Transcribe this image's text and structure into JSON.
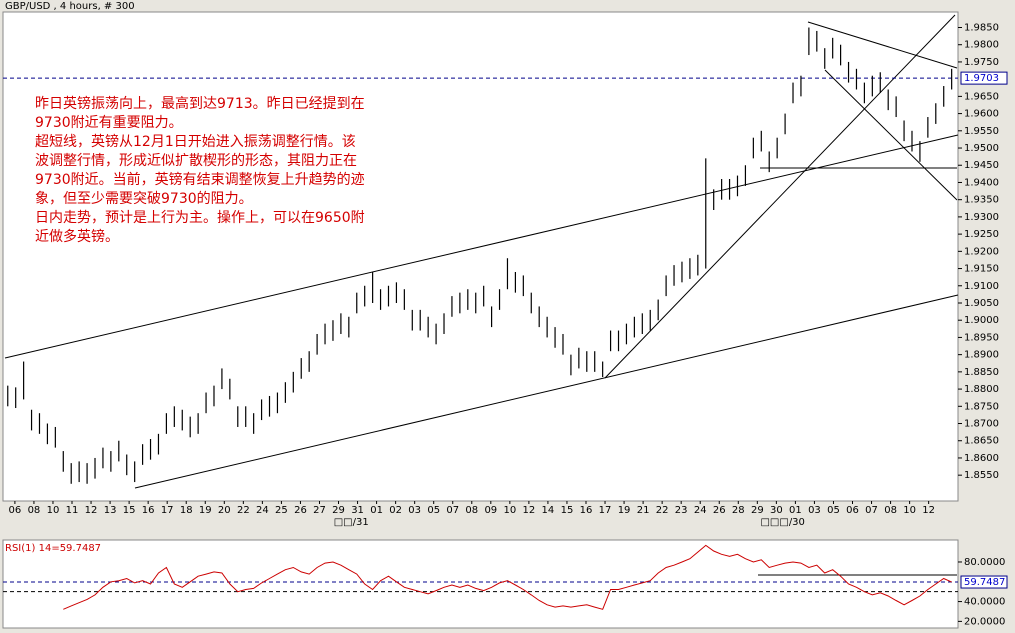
{
  "chart_data": [
    {
      "type": "range-bar",
      "title": "GBP/USD , 4 hours, # 300",
      "color": "#000000",
      "ylim": [
        1.8475,
        1.9895
      ],
      "xlim": [
        -0.6,
        119.8
      ],
      "yticks": [
        {
          "value": 1.855,
          "label": "1.8550"
        },
        {
          "value": 1.86,
          "label": "1.8600"
        },
        {
          "value": 1.865,
          "label": "1.8650"
        },
        {
          "value": 1.87,
          "label": "1.8700"
        },
        {
          "value": 1.875,
          "label": "1.8750"
        },
        {
          "value": 1.88,
          "label": "1.8800"
        },
        {
          "value": 1.885,
          "label": "1.8850"
        },
        {
          "value": 1.89,
          "label": "1.8900"
        },
        {
          "value": 1.895,
          "label": "1.8950"
        },
        {
          "value": 1.9,
          "label": "1.9000"
        },
        {
          "value": 1.905,
          "label": "1.9050"
        },
        {
          "value": 1.91,
          "label": "1.9100"
        },
        {
          "value": 1.915,
          "label": "1.9150"
        },
        {
          "value": 1.92,
          "label": "1.9200"
        },
        {
          "value": 1.925,
          "label": "1.9250"
        },
        {
          "value": 1.93,
          "label": "1.9300"
        },
        {
          "value": 1.935,
          "label": "1.9350"
        },
        {
          "value": 1.94,
          "label": "1.9400"
        },
        {
          "value": 1.945,
          "label": "1.9450"
        },
        {
          "value": 1.95,
          "label": "1.9500"
        },
        {
          "value": 1.955,
          "label": "1.9550"
        },
        {
          "value": 1.96,
          "label": "1.9600"
        },
        {
          "value": 1.965,
          "label": "1.9650"
        },
        {
          "value": 1.975,
          "label": "1.9750"
        },
        {
          "value": 1.98,
          "label": "1.9800"
        },
        {
          "value": 1.985,
          "label": "1.9850"
        }
      ],
      "xticks": [
        {
          "value": 0.9,
          "label": "06"
        },
        {
          "value": 3.3,
          "label": "08"
        },
        {
          "value": 5.7,
          "label": "10"
        },
        {
          "value": 8.1,
          "label": "11"
        },
        {
          "value": 10.5,
          "label": "12"
        },
        {
          "value": 12.9,
          "label": "13"
        },
        {
          "value": 15.3,
          "label": "15"
        },
        {
          "value": 17.7,
          "label": "16"
        },
        {
          "value": 20.1,
          "label": "17"
        },
        {
          "value": 22.5,
          "label": "18"
        },
        {
          "value": 24.9,
          "label": "19"
        },
        {
          "value": 27.3,
          "label": "20"
        },
        {
          "value": 29.7,
          "label": "22"
        },
        {
          "value": 32.1,
          "label": "24"
        },
        {
          "value": 34.5,
          "label": "25"
        },
        {
          "value": 36.9,
          "label": "26"
        },
        {
          "value": 39.3,
          "label": "27"
        },
        {
          "value": 41.7,
          "label": "29"
        },
        {
          "value": 44.1,
          "label": "31"
        },
        {
          "value": 46.5,
          "label": "01"
        },
        {
          "value": 48.9,
          "label": "02"
        },
        {
          "value": 51.3,
          "label": "03"
        },
        {
          "value": 53.7,
          "label": "05"
        },
        {
          "value": 56.1,
          "label": "07"
        },
        {
          "value": 58.5,
          "label": "08"
        },
        {
          "value": 60.9,
          "label": "09"
        },
        {
          "value": 63.3,
          "label": "10"
        },
        {
          "value": 65.7,
          "label": "12"
        },
        {
          "value": 68.1,
          "label": "14"
        },
        {
          "value": 70.5,
          "label": "15"
        },
        {
          "value": 72.9,
          "label": "16"
        },
        {
          "value": 75.3,
          "label": "17"
        },
        {
          "value": 77.7,
          "label": "19"
        },
        {
          "value": 80.1,
          "label": "21"
        },
        {
          "value": 82.5,
          "label": "22"
        },
        {
          "value": 84.9,
          "label": "23"
        },
        {
          "value": 87.3,
          "label": "24"
        },
        {
          "value": 89.7,
          "label": "26"
        },
        {
          "value": 92.1,
          "label": "28"
        },
        {
          "value": 94.5,
          "label": "29"
        },
        {
          "value": 96.9,
          "label": "30"
        },
        {
          "value": 99.3,
          "label": "01"
        },
        {
          "value": 101.7,
          "label": "03"
        },
        {
          "value": 104.1,
          "label": "05"
        },
        {
          "value": 106.5,
          "label": "06"
        },
        {
          "value": 108.9,
          "label": "07"
        },
        {
          "value": 111.3,
          "label": "08"
        },
        {
          "value": 113.7,
          "label": "10"
        },
        {
          "value": 116.1,
          "label": "12"
        }
      ],
      "month_labels": [
        {
          "value": 43.3,
          "label": "□□/31"
        },
        {
          "value": 97.7,
          "label": "□□□/30"
        }
      ],
      "last": {
        "value": 1.9703,
        "label": "1.9703"
      },
      "annotations": [
        "昨日英镑振荡向上，最高到达9713。昨日已经提到在",
        "9730附近有重要阻力。",
        "超短线，英镑从12月1日开始进入振荡调整行情。该",
        "波调整行情，形成近似扩散楔形的形态，其阻力正在",
        "9730附近。当前，英镑有结束调整恢复上升趋势的迹",
        "象，但至少需要突破9730的阻力。",
        "日内走势，预计是上行为主。操作上，可以在9650附",
        "近做多英镑。"
      ],
      "high": [
        1.881,
        1.8805,
        1.888,
        1.874,
        1.873,
        1.87,
        1.869,
        1.862,
        1.8585,
        1.859,
        1.8585,
        1.86,
        1.863,
        1.862,
        1.865,
        1.861,
        1.859,
        1.864,
        1.8655,
        1.867,
        1.873,
        1.875,
        1.874,
        1.872,
        1.873,
        1.879,
        1.881,
        1.886,
        1.883,
        1.875,
        1.875,
        1.873,
        1.877,
        1.878,
        1.879,
        1.882,
        1.885,
        1.889,
        1.891,
        1.896,
        1.899,
        1.9,
        1.902,
        1.901,
        1.908,
        1.91,
        1.914,
        1.909,
        1.91,
        1.911,
        1.909,
        1.903,
        1.903,
        1.901,
        1.899,
        1.902,
        1.907,
        1.908,
        1.909,
        1.908,
        1.91,
        1.904,
        1.909,
        1.918,
        1.914,
        1.913,
        1.908,
        1.904,
        1.901,
        1.898,
        1.896,
        1.89,
        1.892,
        1.891,
        1.891,
        1.888,
        1.897,
        1.897,
        1.899,
        1.901,
        1.902,
        1.903,
        1.906,
        1.913,
        1.916,
        1.917,
        1.918,
        1.919,
        1.947,
        1.938,
        1.941,
        1.941,
        1.942,
        1.945,
        1.953,
        1.955,
        1.949,
        1.953,
        1.96,
        1.969,
        1.971,
        1.985,
        1.984,
        1.979,
        1.982,
        1.98,
        1.975,
        1.973,
        1.969,
        1.971,
        1.972,
        1.967,
        1.965,
        1.958,
        1.955,
        1.952,
        1.959,
        1.963,
        1.968,
        1.973
      ],
      "low": [
        1.875,
        1.8745,
        1.877,
        1.868,
        1.867,
        1.864,
        1.863,
        1.856,
        1.8525,
        1.853,
        1.8525,
        1.854,
        1.857,
        1.856,
        1.859,
        1.855,
        1.853,
        1.858,
        1.8595,
        1.861,
        1.867,
        1.869,
        1.868,
        1.866,
        1.867,
        1.873,
        1.875,
        1.88,
        1.877,
        1.869,
        1.869,
        1.867,
        1.871,
        1.872,
        1.873,
        1.876,
        1.879,
        1.883,
        1.885,
        1.89,
        1.893,
        1.894,
        1.896,
        1.895,
        1.902,
        1.904,
        1.905,
        1.903,
        1.904,
        1.905,
        1.903,
        1.897,
        1.897,
        1.895,
        1.893,
        1.896,
        1.901,
        1.902,
        1.903,
        1.902,
        1.904,
        1.898,
        1.903,
        1.909,
        1.908,
        1.907,
        1.902,
        1.898,
        1.895,
        1.892,
        1.89,
        1.884,
        1.886,
        1.885,
        1.885,
        1.8835,
        1.891,
        1.891,
        1.893,
        1.895,
        1.896,
        1.897,
        1.9,
        1.907,
        1.91,
        1.911,
        1.912,
        1.913,
        1.915,
        1.932,
        1.935,
        1.935,
        1.936,
        1.939,
        1.947,
        1.949,
        1.943,
        1.947,
        1.954,
        1.963,
        1.965,
        1.977,
        1.978,
        1.973,
        1.976,
        1.974,
        1.969,
        1.967,
        1.963,
        1.965,
        1.966,
        1.961,
        1.959,
        1.952,
        1.949,
        1.946,
        1.953,
        1.957,
        1.962,
        1.967
      ]
    },
    {
      "type": "line",
      "title": "RSI(1) 14=59.7487",
      "color": "#cc0000",
      "ylim": [
        13.3,
        102.2
      ],
      "xlim": [
        -0.6,
        119.8
      ],
      "yticks": [
        {
          "value": 20,
          "label": "20.0000"
        },
        {
          "value": 40,
          "label": "40.0000"
        },
        {
          "value": 80,
          "label": "80.0000"
        }
      ],
      "reference": 50,
      "last": {
        "value": 59.7487,
        "label": "59.7487"
      },
      "values": [
        null,
        null,
        null,
        null,
        null,
        null,
        null,
        32.2,
        35.6,
        38.9,
        42.2,
        46.7,
        54.4,
        60,
        61.1,
        63.3,
        58.9,
        61.1,
        57.8,
        68.9,
        74.4,
        57.8,
        54.4,
        60,
        65.6,
        67.8,
        70,
        68.9,
        57.8,
        50,
        52.2,
        53.3,
        58.9,
        63.3,
        67.8,
        72.2,
        74.4,
        70,
        67.8,
        74.4,
        78.9,
        80,
        76.7,
        72.2,
        67.8,
        57.8,
        52.2,
        61.1,
        65.6,
        60,
        54.4,
        52.2,
        50,
        47.8,
        51.1,
        54.4,
        56.7,
        54.4,
        56.7,
        53.3,
        51.1,
        54.4,
        58.9,
        61.1,
        56.7,
        52.2,
        46.7,
        41.1,
        36.7,
        34.4,
        35.6,
        34.4,
        35.6,
        36.7,
        34.4,
        32.2,
        52.2,
        52.2,
        54.4,
        56.7,
        58.9,
        61.1,
        68.9,
        74.4,
        76.7,
        80,
        83.3,
        90,
        96.7,
        91.1,
        87.8,
        85.6,
        87.8,
        83.3,
        80,
        82.2,
        74.4,
        76.7,
        78.9,
        80,
        78.9,
        74.4,
        76.7,
        68.9,
        72.2,
        65.6,
        57.8,
        54.4,
        50,
        46.7,
        48.9,
        45.6,
        41.1,
        36.7,
        41.1,
        45.6,
        52.2,
        57.8,
        63.3,
        59.7
      ]
    }
  ]
}
